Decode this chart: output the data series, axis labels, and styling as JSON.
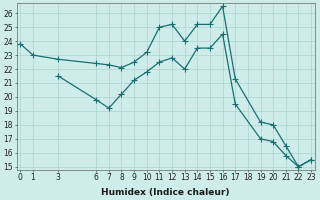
{
  "xlabel": "Humidex (Indice chaleur)",
  "bg_color": "#cdecea",
  "grid_color": "#b0d8d5",
  "line_color": "#1a7070",
  "line1_x": [
    0,
    1,
    3,
    6,
    7,
    8,
    9,
    10,
    11,
    12,
    13,
    14,
    15,
    16,
    17,
    19,
    20,
    21,
    22,
    23
  ],
  "line1_y": [
    23.8,
    23.0,
    22.7,
    22.4,
    22.3,
    22.1,
    22.5,
    23.2,
    25.0,
    25.2,
    24.0,
    25.2,
    25.2,
    26.5,
    21.3,
    18.2,
    18.0,
    16.5,
    15.0,
    15.5
  ],
  "line2_x": [
    3,
    6,
    7,
    8,
    9,
    10,
    11,
    12,
    13,
    14,
    15,
    16,
    17,
    19,
    20,
    21,
    22,
    23
  ],
  "line2_y": [
    21.5,
    19.8,
    19.2,
    20.2,
    21.2,
    21.8,
    22.5,
    22.8,
    22.0,
    23.5,
    23.5,
    24.5,
    19.5,
    17.0,
    16.8,
    15.8,
    15.0,
    15.5
  ],
  "xlim": [
    -0.3,
    23.3
  ],
  "ylim": [
    14.8,
    26.7
  ],
  "xticks": [
    0,
    1,
    3,
    6,
    7,
    8,
    9,
    10,
    11,
    12,
    13,
    14,
    15,
    16,
    17,
    18,
    19,
    20,
    21,
    22,
    23
  ],
  "yticks": [
    15,
    16,
    17,
    18,
    19,
    20,
    21,
    22,
    23,
    24,
    25,
    26
  ],
  "tick_fontsize": 5.5,
  "xlabel_fontsize": 6.5
}
